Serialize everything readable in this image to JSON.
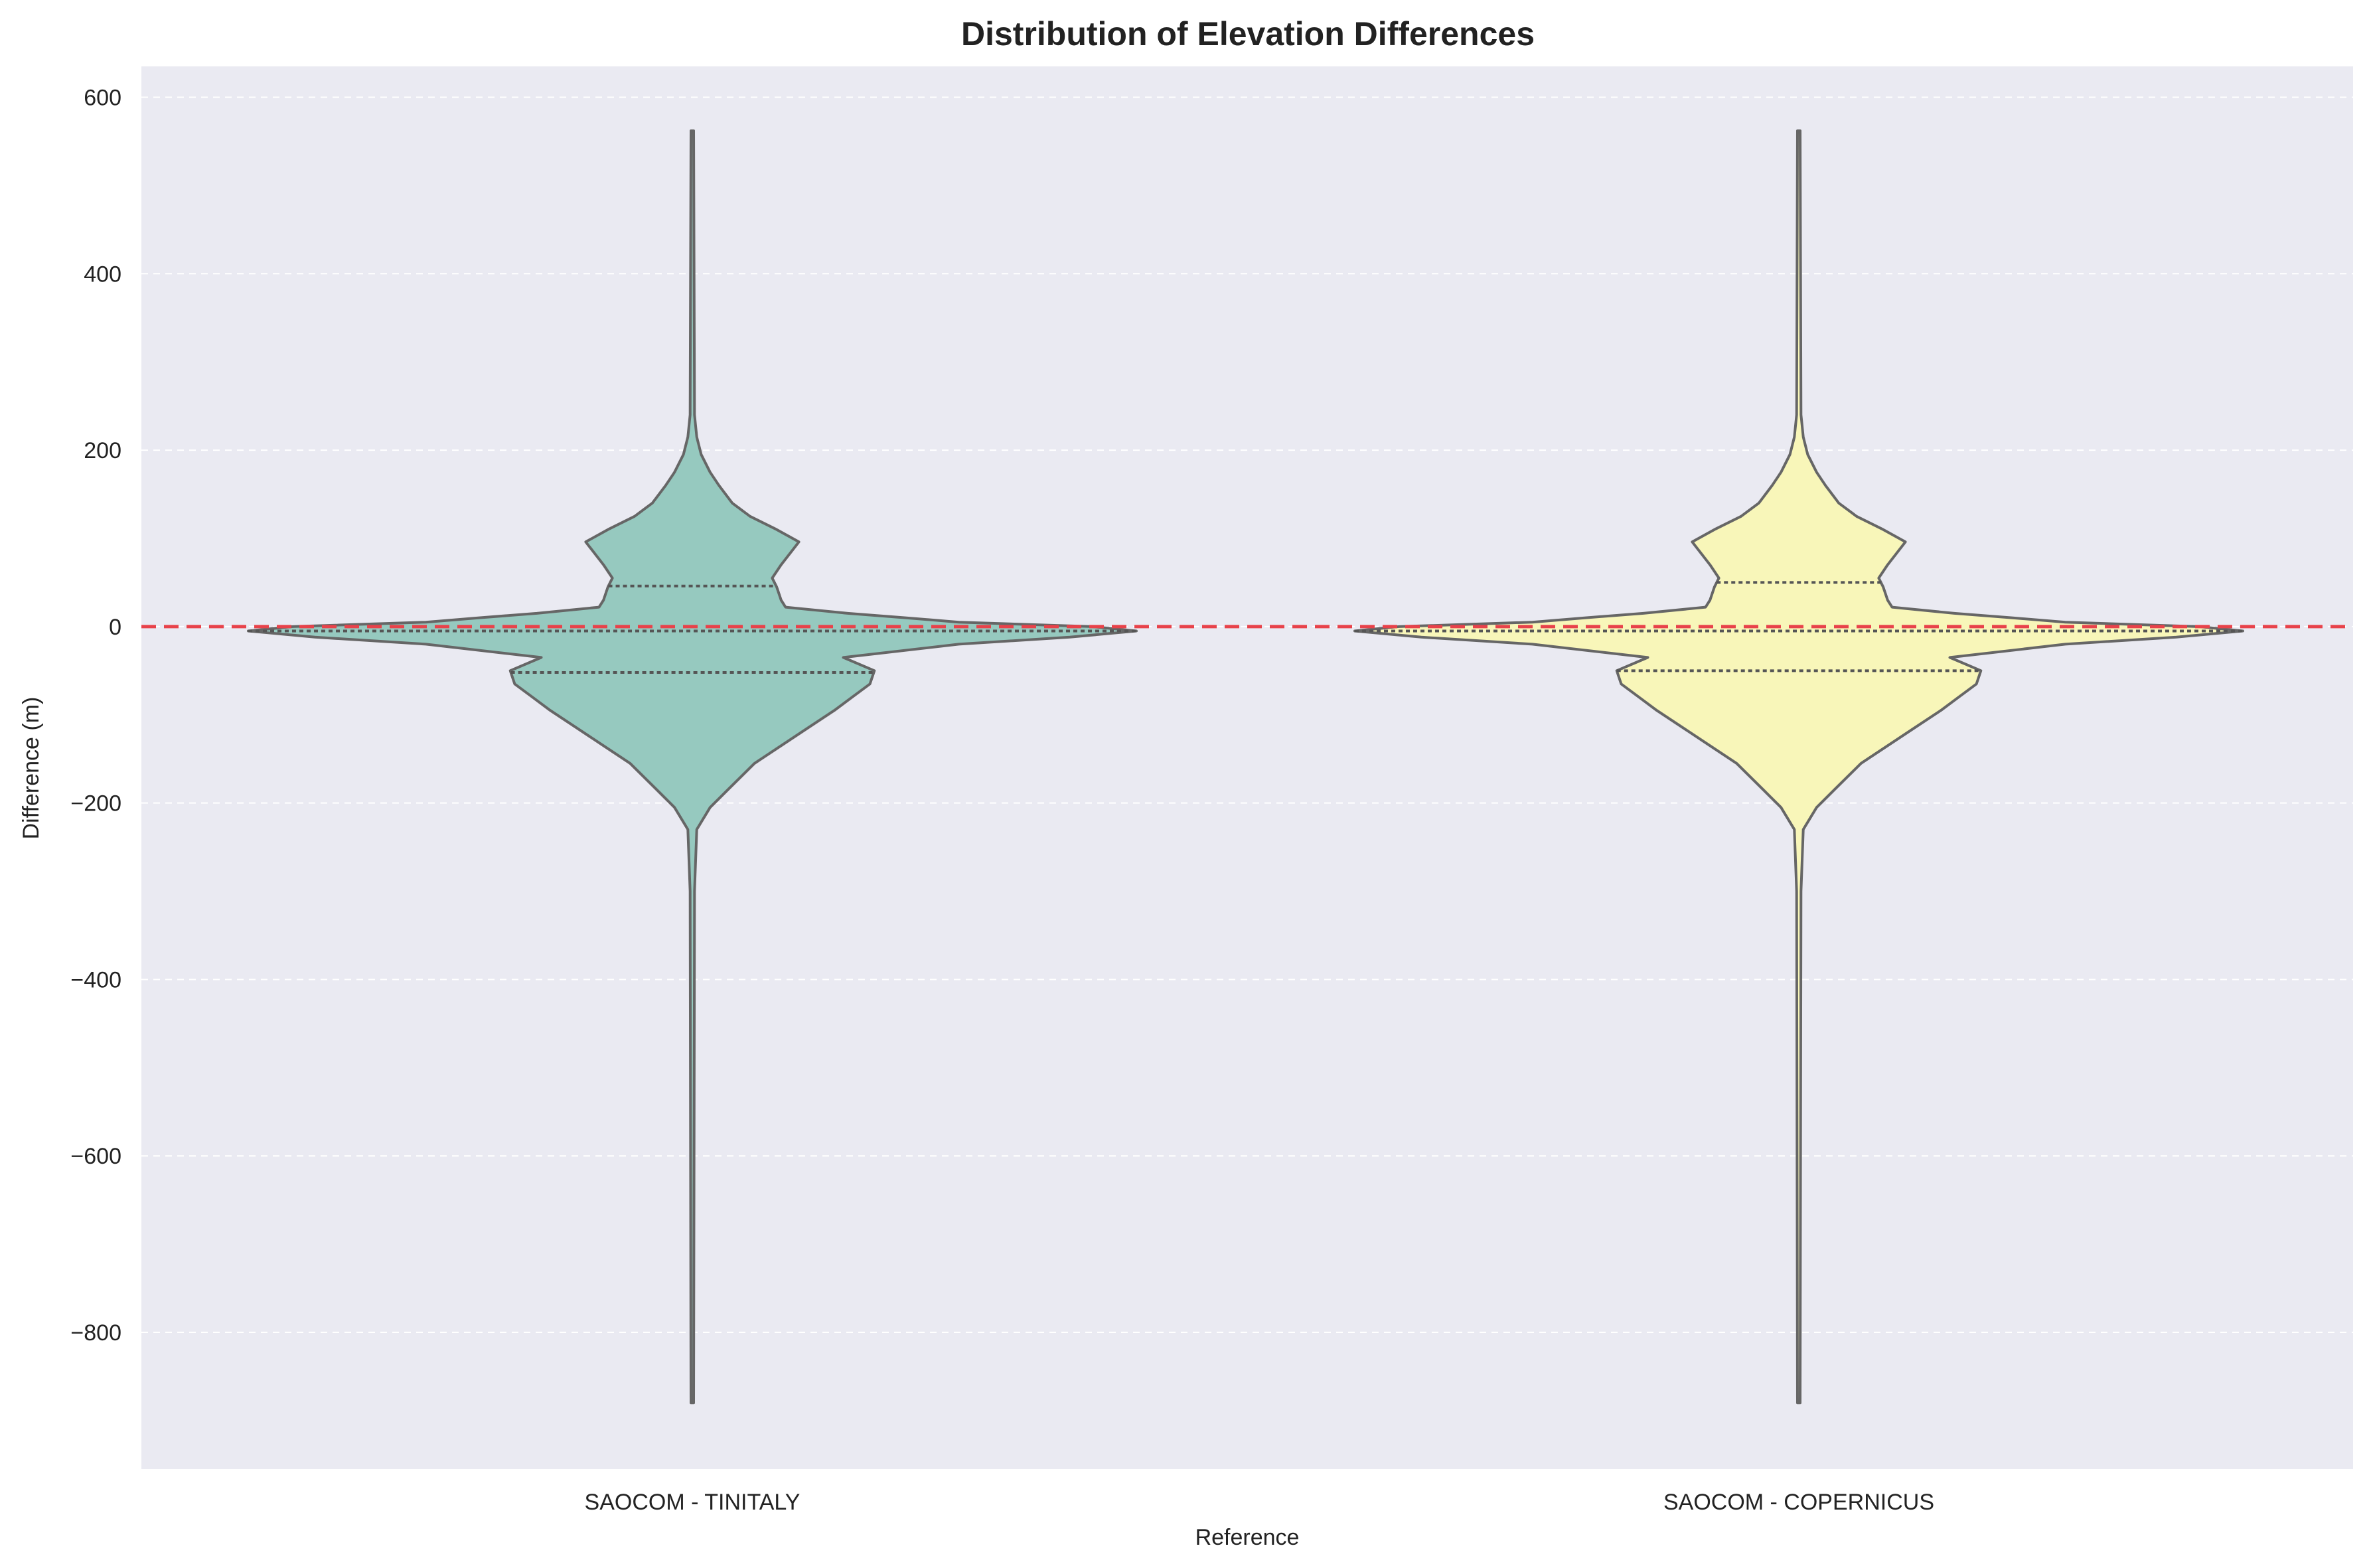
{
  "chart_data": {
    "type": "violin",
    "title": "Distribution of Elevation Differences",
    "xlabel": "Reference",
    "ylabel": "Difference (m)",
    "ylim": [
      -955,
      635
    ],
    "yticks": [
      600,
      400,
      200,
      0,
      -200,
      -400,
      -600,
      -800
    ],
    "ytick_labels": [
      "600",
      "400",
      "200",
      "0",
      "−200",
      "−400",
      "−600",
      "−800"
    ],
    "grid": true,
    "reference_line": {
      "y": 0,
      "color": "#e8424a",
      "style": "dashed"
    },
    "categories": [
      "SAOCOM - TINITALY",
      "SAOCOM - COPERNICUS"
    ],
    "series": [
      {
        "color": "#96c9bf",
        "min": -880,
        "max": 562,
        "quartiles": [
          -52,
          -5,
          46
        ],
        "profile": [
          [
            -880,
            0.003
          ],
          [
            -300,
            0.005
          ],
          [
            -230,
            0.01
          ],
          [
            -205,
            0.04
          ],
          [
            -185,
            0.08
          ],
          [
            -170,
            0.11
          ],
          [
            -155,
            0.14
          ],
          [
            -135,
            0.2
          ],
          [
            -115,
            0.26
          ],
          [
            -95,
            0.32
          ],
          [
            -80,
            0.36
          ],
          [
            -65,
            0.4
          ],
          [
            -50,
            0.41
          ],
          [
            -35,
            0.34
          ],
          [
            -20,
            0.6
          ],
          [
            -12,
            0.85
          ],
          [
            -5,
            1.0
          ],
          [
            0,
            0.9
          ],
          [
            5,
            0.6
          ],
          [
            10,
            0.48
          ],
          [
            15,
            0.35
          ],
          [
            22,
            0.21
          ],
          [
            30,
            0.2
          ],
          [
            45,
            0.19
          ],
          [
            55,
            0.18
          ],
          [
            70,
            0.2
          ],
          [
            96,
            0.24
          ],
          [
            110,
            0.19
          ],
          [
            125,
            0.13
          ],
          [
            140,
            0.09
          ],
          [
            160,
            0.06
          ],
          [
            175,
            0.04
          ],
          [
            195,
            0.02
          ],
          [
            215,
            0.01
          ],
          [
            240,
            0.005
          ],
          [
            562,
            0.003
          ]
        ]
      },
      {
        "color": "#f8f6b9",
        "min": -880,
        "max": 562,
        "quartiles": [
          -50,
          -5,
          50
        ],
        "profile": [
          [
            -880,
            0.003
          ],
          [
            -300,
            0.005
          ],
          [
            -230,
            0.01
          ],
          [
            -205,
            0.04
          ],
          [
            -185,
            0.08
          ],
          [
            -170,
            0.11
          ],
          [
            -155,
            0.14
          ],
          [
            -135,
            0.2
          ],
          [
            -115,
            0.26
          ],
          [
            -95,
            0.32
          ],
          [
            -80,
            0.36
          ],
          [
            -65,
            0.4
          ],
          [
            -50,
            0.41
          ],
          [
            -35,
            0.34
          ],
          [
            -20,
            0.6
          ],
          [
            -12,
            0.85
          ],
          [
            -5,
            1.0
          ],
          [
            0,
            0.9
          ],
          [
            5,
            0.6
          ],
          [
            10,
            0.48
          ],
          [
            15,
            0.35
          ],
          [
            22,
            0.21
          ],
          [
            30,
            0.2
          ],
          [
            45,
            0.19
          ],
          [
            55,
            0.18
          ],
          [
            70,
            0.2
          ],
          [
            96,
            0.24
          ],
          [
            110,
            0.19
          ],
          [
            125,
            0.13
          ],
          [
            140,
            0.09
          ],
          [
            160,
            0.06
          ],
          [
            175,
            0.04
          ],
          [
            195,
            0.02
          ],
          [
            215,
            0.01
          ],
          [
            240,
            0.005
          ],
          [
            562,
            0.003
          ]
        ]
      }
    ]
  },
  "colors": {
    "plot_background": "#eaeaf2",
    "grid": "#ffffff",
    "outline": "#666666"
  }
}
